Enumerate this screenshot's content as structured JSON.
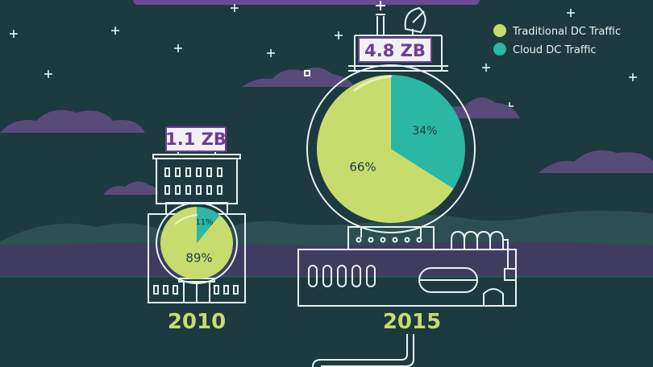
{
  "chart_data": {
    "type": "pie",
    "legend": {
      "placement": "top-right",
      "entries": [
        {
          "name": "Traditional DC Traffic",
          "color": "#c8dc6e"
        },
        {
          "name": "Cloud DC Traffic",
          "color": "#2ab7a3"
        }
      ]
    },
    "charts": [
      {
        "year": "2010",
        "total": "1.1 ZB",
        "slices": [
          {
            "series": "Traditional DC Traffic",
            "value": 89,
            "label": "89%"
          },
          {
            "series": "Cloud DC Traffic",
            "value": 11,
            "label": "11%"
          }
        ]
      },
      {
        "year": "2015",
        "total": "4.8 ZB",
        "slices": [
          {
            "series": "Traditional DC Traffic",
            "value": 66,
            "label": "66%"
          },
          {
            "series": "Cloud DC Traffic",
            "value": 34,
            "label": "34%"
          }
        ]
      }
    ]
  },
  "colors": {
    "background": "#1c3a40",
    "hills": "#2b4f52",
    "ground": "#403b61",
    "clouds": "#594b79",
    "outline": "#e8f3f2",
    "label_box": "#f1f1f4",
    "label_text": "#6b3f93",
    "year_text": "#c8dc6e"
  }
}
